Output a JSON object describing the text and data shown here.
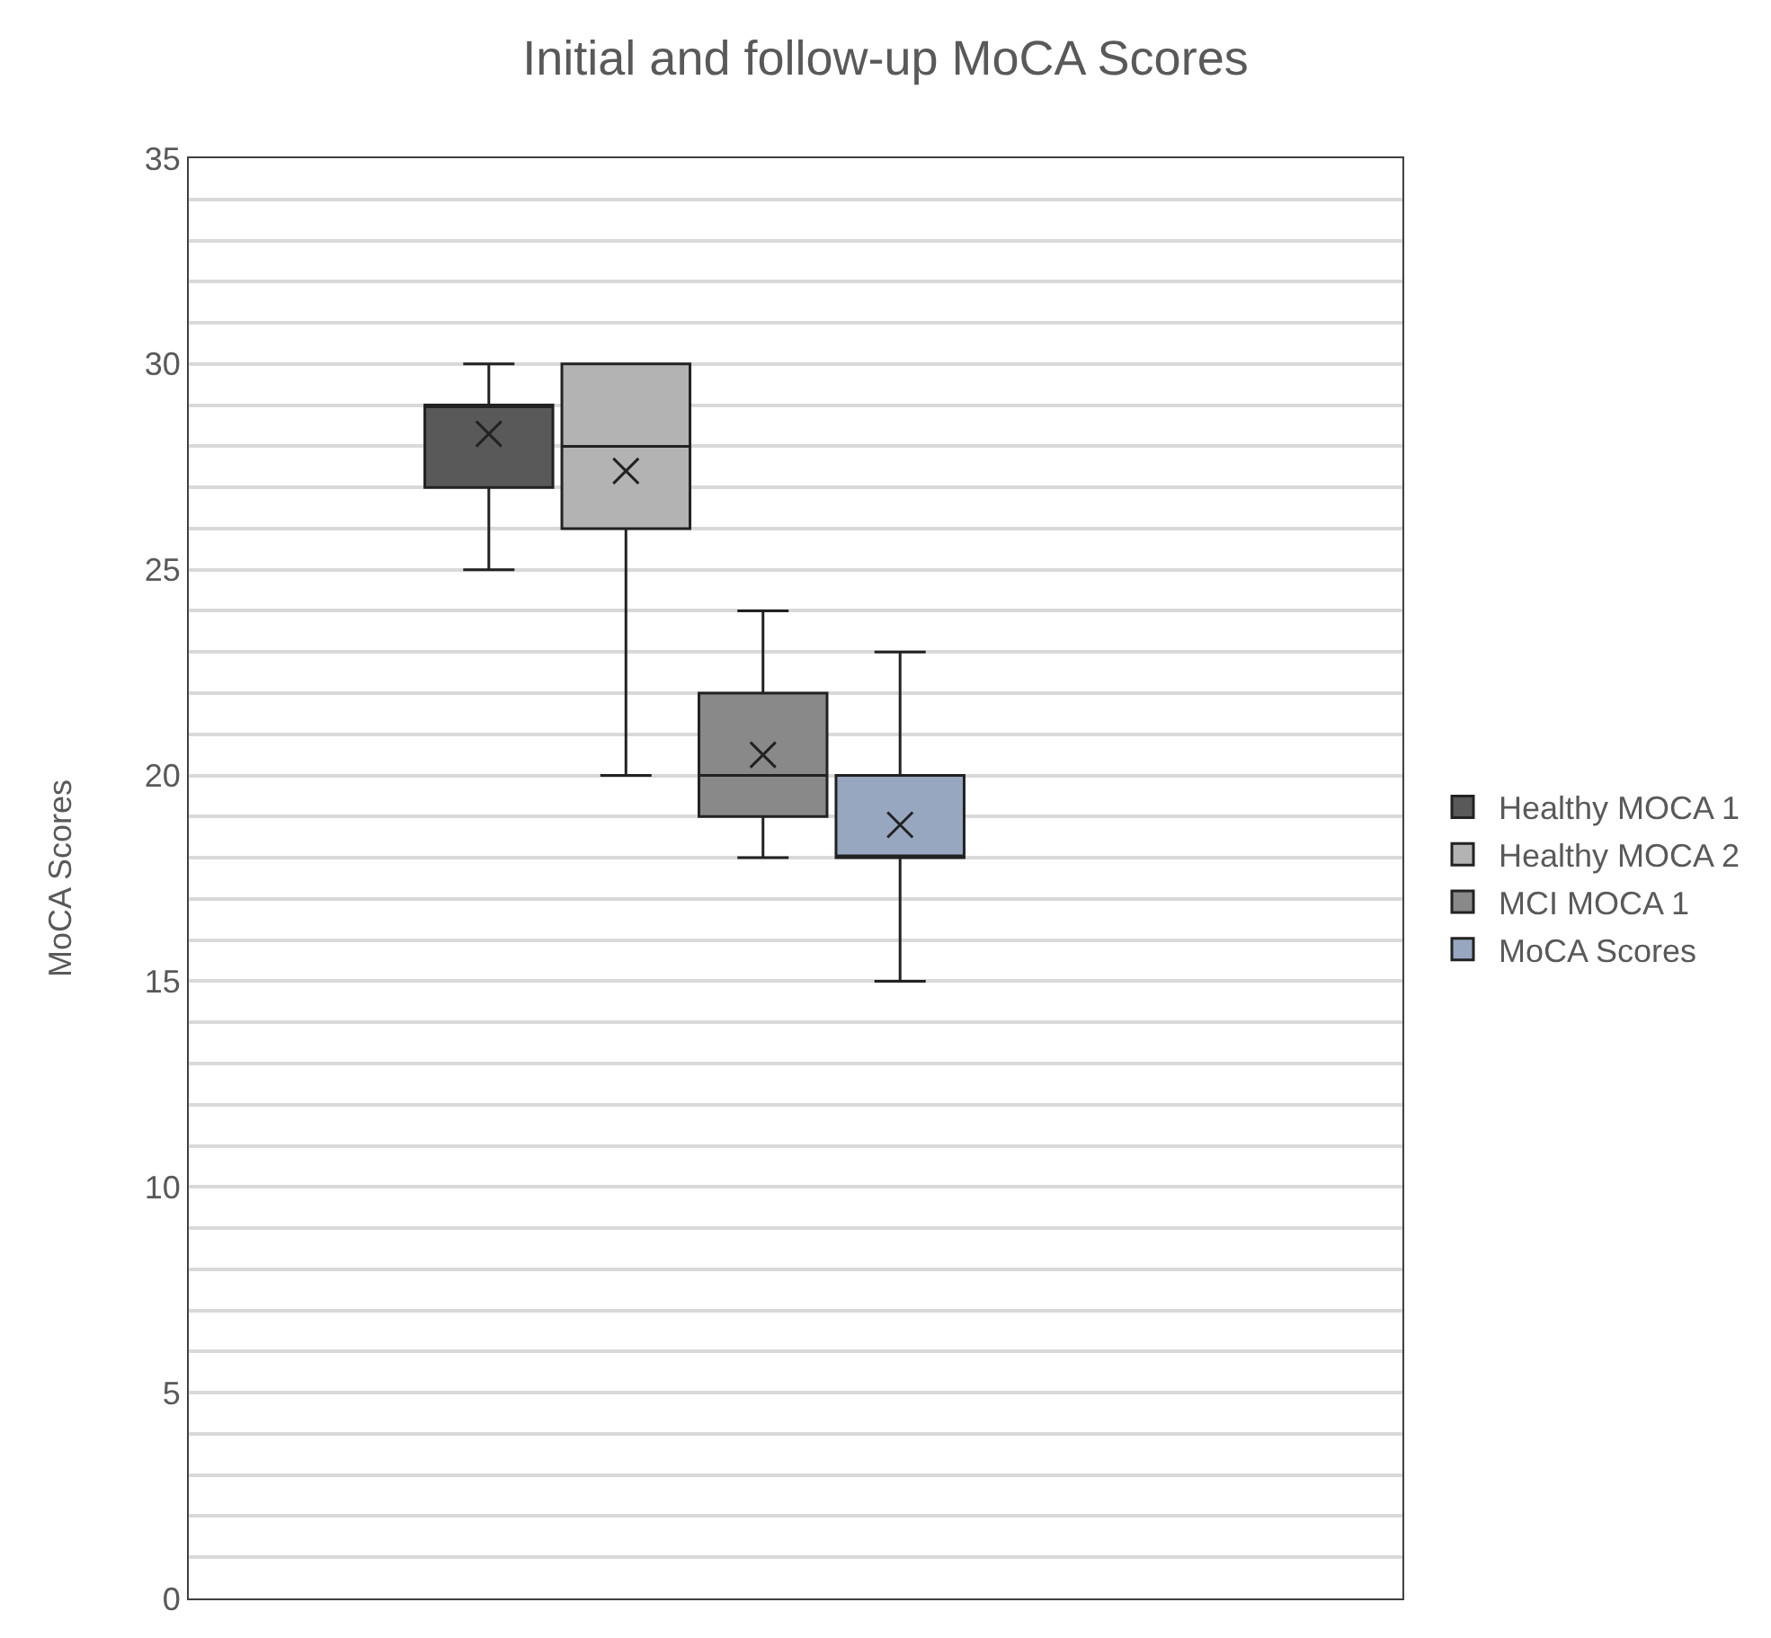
{
  "chart_data": {
    "type": "box",
    "title": "Initial and follow-up MoCA Scores",
    "ylabel": "MoCA Scores",
    "categories": [
      null
    ],
    "ylim": [
      0,
      35
    ],
    "yticks": [
      0,
      {
        "value": 1,
        "label": null
      },
      {
        "value": 2,
        "label": null
      },
      {
        "value": 3,
        "label": null
      },
      {
        "value": 4,
        "label": null
      },
      5,
      {
        "value": 6,
        "label": null
      },
      {
        "value": 7,
        "label": null
      },
      {
        "value": 8,
        "label": null
      },
      {
        "value": 9,
        "label": null
      },
      10,
      {
        "value": 11,
        "label": null
      },
      {
        "value": 12,
        "label": null
      },
      {
        "value": 13,
        "label": null
      },
      {
        "value": 14,
        "label": null
      },
      15,
      {
        "value": 16,
        "label": null
      },
      {
        "value": 17,
        "label": null
      },
      {
        "value": 18,
        "label": null
      },
      {
        "value": 19,
        "label": null
      },
      20,
      {
        "value": 21,
        "label": null
      },
      {
        "value": 22,
        "label": null
      },
      {
        "value": 23,
        "label": null
      },
      {
        "value": 24,
        "label": null
      },
      25,
      {
        "value": 26,
        "label": null
      },
      {
        "value": 27,
        "label": null
      },
      {
        "value": 28,
        "label": null
      },
      {
        "value": 29,
        "label": null
      },
      30,
      {
        "value": 31,
        "label": null
      },
      {
        "value": 32,
        "label": null
      },
      {
        "value": 33,
        "label": null
      },
      {
        "value": 34,
        "label": null
      },
      35
    ],
    "grid": "y",
    "legend": "right",
    "series": [
      {
        "name": "Healthy MOCA 1",
        "color": "#595959",
        "boxes": [
          {
            "low": 25,
            "q1": 27,
            "median": 29,
            "q3": 29,
            "high": 30,
            "mean": 28.3
          }
        ]
      },
      {
        "name": "Healthy MOCA 2",
        "color": "#b3b3b3",
        "boxes": [
          {
            "low": 20,
            "q1": 26,
            "median": 28,
            "q3": 30,
            "high": 30,
            "mean": 27.4
          }
        ]
      },
      {
        "name": "MCI MOCA 1",
        "color": "#898989",
        "boxes": [
          {
            "low": 18,
            "q1": 19,
            "median": 20,
            "q3": 22,
            "high": 24,
            "mean": 20.5
          }
        ]
      },
      {
        "name": "MoCA Scores",
        "color": "#97a7c0",
        "boxes": [
          {
            "low": 15,
            "q1": 18,
            "median": 18,
            "q3": 20,
            "high": 23,
            "mean": 18.8
          }
        ]
      }
    ]
  }
}
